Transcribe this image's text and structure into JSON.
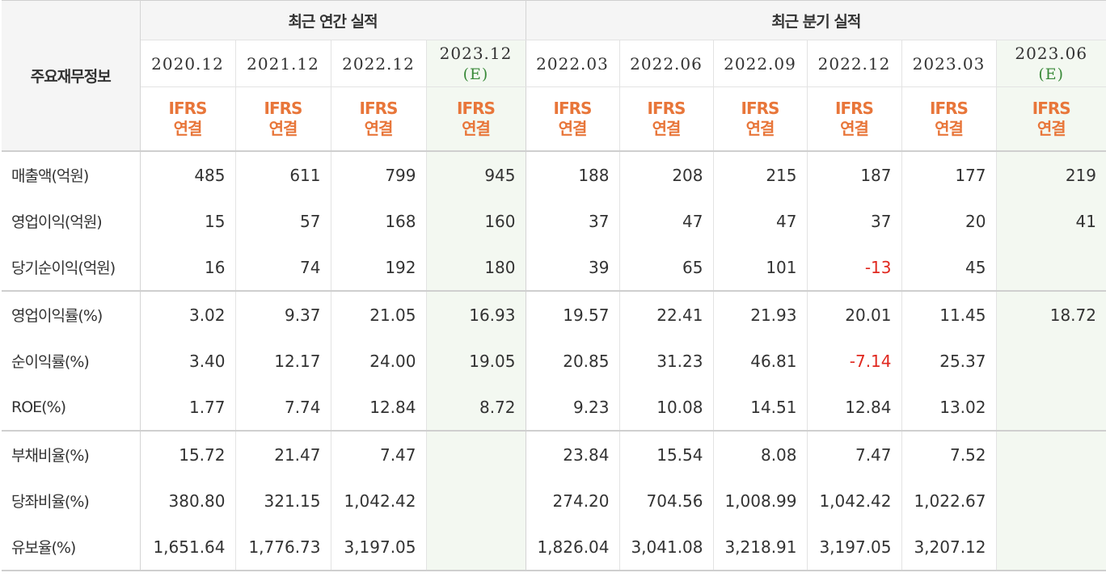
{
  "header": {
    "corner_label": "주요재무정보",
    "annual_group": "최근 연간 실적",
    "quarter_group": "최근 분기 실적",
    "annual_periods": [
      {
        "date": "2020.12",
        "est": ""
      },
      {
        "date": "2021.12",
        "est": ""
      },
      {
        "date": "2022.12",
        "est": ""
      },
      {
        "date": "2023.12",
        "est": "(E)"
      }
    ],
    "quarter_periods": [
      {
        "date": "2022.03",
        "est": ""
      },
      {
        "date": "2022.06",
        "est": ""
      },
      {
        "date": "2022.09",
        "est": ""
      },
      {
        "date": "2022.12",
        "est": ""
      },
      {
        "date": "2023.03",
        "est": ""
      },
      {
        "date": "2023.06",
        "est": "(E)"
      }
    ],
    "basis_line1": "IFRS",
    "basis_line2": "연결"
  },
  "colors": {
    "basis_text": "#e8763a",
    "estimate_text": "#3a8a3a",
    "negative_text": "#e0281f",
    "estimate_column_bg": "#f3f8f1"
  },
  "rows": [
    {
      "label": "매출액(억원)",
      "values": [
        "485",
        "611",
        "799",
        "945",
        "188",
        "208",
        "215",
        "187",
        "177",
        "219"
      ]
    },
    {
      "label": "영업이익(억원)",
      "values": [
        "15",
        "57",
        "168",
        "160",
        "37",
        "47",
        "47",
        "37",
        "20",
        "41"
      ]
    },
    {
      "label": "당기순이익(억원)",
      "values": [
        "16",
        "74",
        "192",
        "180",
        "39",
        "65",
        "101",
        "-13",
        "45",
        ""
      ]
    },
    {
      "label": "영업이익률(%)",
      "values": [
        "3.02",
        "9.37",
        "21.05",
        "16.93",
        "19.57",
        "22.41",
        "21.93",
        "20.01",
        "11.45",
        "18.72"
      ]
    },
    {
      "label": "순이익률(%)",
      "values": [
        "3.40",
        "12.17",
        "24.00",
        "19.05",
        "20.85",
        "31.23",
        "46.81",
        "-7.14",
        "25.37",
        ""
      ]
    },
    {
      "label": "ROE(%)",
      "values": [
        "1.77",
        "7.74",
        "12.84",
        "8.72",
        "9.23",
        "10.08",
        "14.51",
        "12.84",
        "13.02",
        ""
      ]
    },
    {
      "label": "부채비율(%)",
      "values": [
        "15.72",
        "21.47",
        "7.47",
        "",
        "23.84",
        "15.54",
        "8.08",
        "7.47",
        "7.52",
        ""
      ]
    },
    {
      "label": "당좌비율(%)",
      "values": [
        "380.80",
        "321.15",
        "1,042.42",
        "",
        "274.20",
        "704.56",
        "1,008.99",
        "1,042.42",
        "1,022.67",
        ""
      ]
    },
    {
      "label": "유보율(%)",
      "values": [
        "1,651.64",
        "1,776.73",
        "3,197.05",
        "",
        "1,826.04",
        "3,041.08",
        "3,218.91",
        "3,197.05",
        "3,207.12",
        ""
      ]
    }
  ]
}
